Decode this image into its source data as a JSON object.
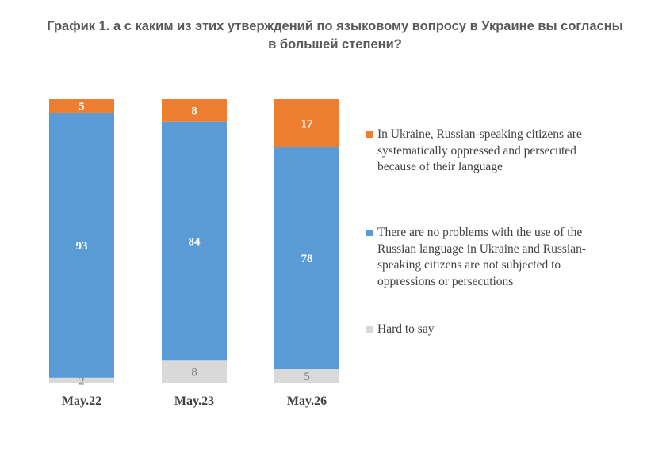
{
  "title_lines": [
    "График 1. а с каким из этих утверждений по языковому вопросу в Украине вы согласны",
    "в большей степени?"
  ],
  "colors": {
    "oppressed": "#ED7D31",
    "no_problems": "#5B9BD5",
    "hard_to_say": "#D9D9D9",
    "label_light": "#ffffff",
    "label_dark": "#7f7f7f",
    "axis_label": "#404040"
  },
  "legend": {
    "oppressed_lines": [
      "In Ukraine, Russian-speaking citizens are",
      "systematically oppressed and persecuted",
      "because of their language"
    ],
    "no_problems_lines": [
      "There are no problems with the use of the",
      "Russian language in Ukraine and Russian-",
      "speaking citizens are not subjected to",
      "oppressions or persecutions"
    ],
    "hard_to_say_lines": [
      "Hard to say"
    ]
  },
  "chart_data": {
    "type": "bar",
    "stacked": true,
    "categories": [
      "May.22",
      "May.23",
      "May.26"
    ],
    "series": [
      {
        "name": "Hard to say",
        "key": "hard_to_say",
        "values": [
          2,
          8,
          5
        ]
      },
      {
        "name": "There are no problems with the use of the Russian language in Ukraine and Russian-speaking citizens are not subjected to oppressions or persecutions",
        "key": "no_problems",
        "values": [
          93,
          84,
          78
        ]
      },
      {
        "name": "In Ukraine, Russian-speaking citizens are systematically oppressed and persecuted because of their language",
        "key": "oppressed",
        "values": [
          5,
          8,
          17
        ]
      }
    ],
    "ylim": [
      0,
      100
    ],
    "grid": false,
    "legend_position": "right"
  }
}
